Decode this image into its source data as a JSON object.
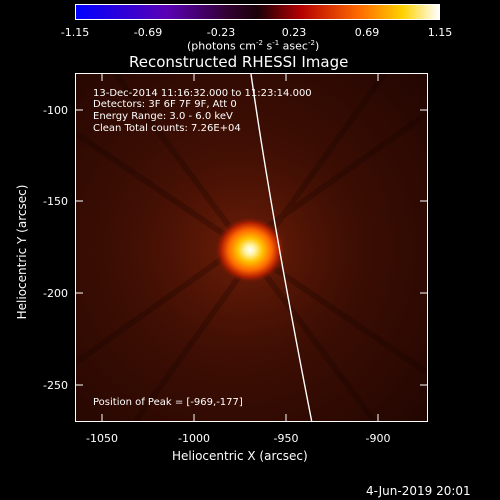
{
  "colorbar": {
    "ticks": [
      "-1.15",
      "-0.69",
      "-0.23",
      "0.23",
      "0.69",
      "1.15"
    ],
    "unit_label": "(photons cm",
    "unit_sup1": "-2",
    "unit_mid": " s",
    "unit_sup2": "-1",
    "unit_mid2": " asec",
    "unit_sup3": "-2",
    "unit_end": ")"
  },
  "plot": {
    "title": "Reconstructed RHESSI Image",
    "xlabel": "Heliocentric X (arcsec)",
    "ylabel": "Heliocentric Y (arcsec)",
    "xticks": [
      "-1050",
      "-1000",
      "-950",
      "-900"
    ],
    "yticks": [
      "-100",
      "-150",
      "-200",
      "-250"
    ],
    "info_line1": "13-Dec-2014 11:16:32.000 to 11:23:14.000",
    "info_line2": "Detectors: 3F 6F 7F 9F, Att 0",
    "info_line3": "Energy Range: 3.0 - 6.0 keV",
    "info_line4": "Clean    Total counts: 7.26E+04",
    "peak_label": "Position of Peak = [-969,-177]"
  },
  "footer": {
    "date": "4-Jun-2019 20:01"
  },
  "colors": {
    "background": "#000000",
    "foreground": "#ffffff"
  }
}
